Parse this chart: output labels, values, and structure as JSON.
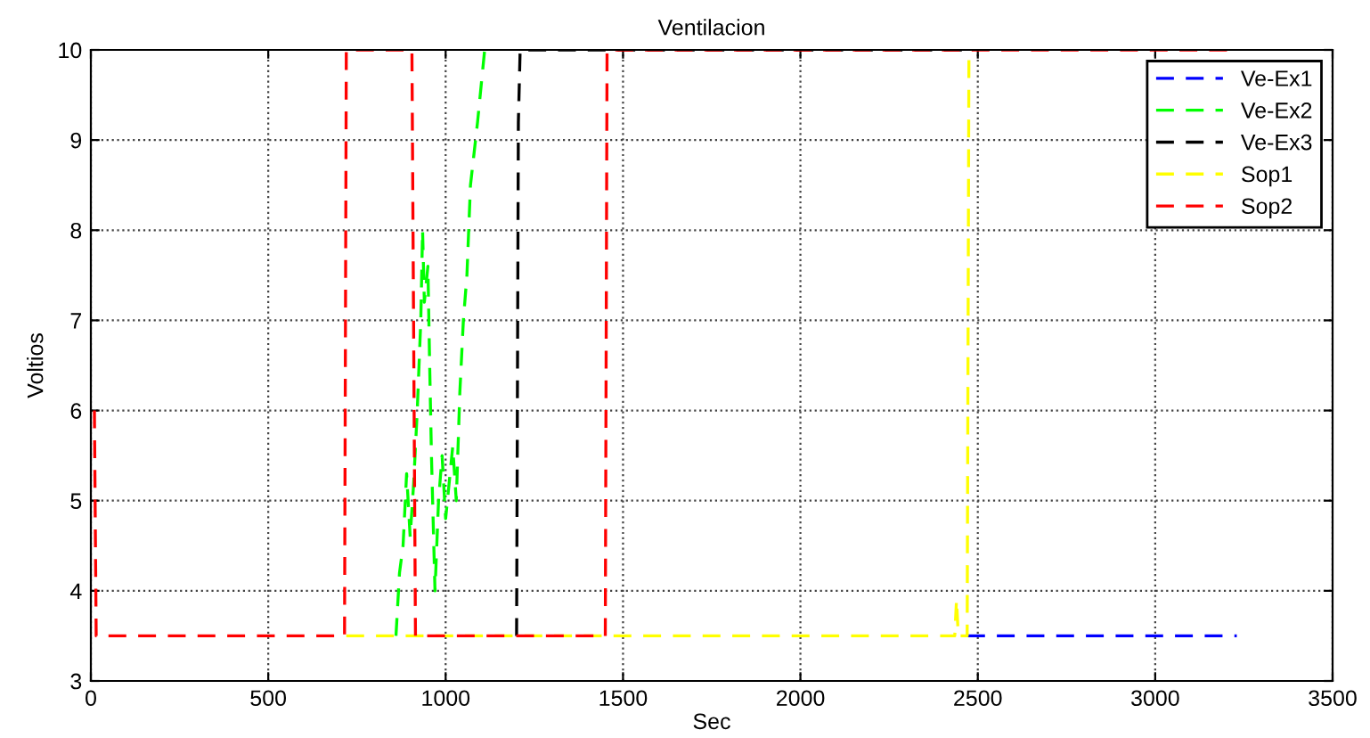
{
  "chart_data": {
    "type": "line",
    "title": "Ventilacion",
    "xlabel": "Sec",
    "ylabel": "Voltios",
    "xlim": [
      0,
      3500
    ],
    "ylim": [
      3,
      10
    ],
    "xticks": [
      0,
      500,
      1000,
      1500,
      2000,
      2500,
      3000,
      3500
    ],
    "yticks": [
      3,
      4,
      5,
      6,
      7,
      8,
      9,
      10
    ],
    "grid": true,
    "legend": "top right",
    "line_style": "dashed",
    "marker": "none",
    "series": [
      {
        "name": "Ve-Ex1",
        "color": "#0000ff",
        "x": [
          2470,
          3230
        ],
        "values": [
          3.5,
          3.5
        ]
      },
      {
        "name": "Ve-Ex2",
        "color": "#00ff00",
        "x": [
          860,
          870,
          880,
          890,
          900,
          910,
          920,
          930,
          935,
          940,
          950,
          955,
          960,
          970,
          980,
          990,
          1000,
          1010,
          1020,
          1030,
          1040,
          1050,
          1060,
          1070,
          1090,
          1110,
          1120
        ],
        "values": [
          3.5,
          4.2,
          4.5,
          5.3,
          4.6,
          5.2,
          6.0,
          7.0,
          8.0,
          7.2,
          7.6,
          6.5,
          5.5,
          4.0,
          5.0,
          5.5,
          4.8,
          5.2,
          5.6,
          5.0,
          6.2,
          7.0,
          7.5,
          8.5,
          9.2,
          10,
          10
        ]
      },
      {
        "name": "Ve-Ex3",
        "color": "#000000",
        "x": [
          1200,
          1205,
          1210,
          2470
        ],
        "values": [
          3.5,
          9.2,
          10,
          10
        ]
      },
      {
        "name": "Sop1",
        "color": "#ffff00",
        "x": [
          720,
          2435,
          2440,
          2445,
          2470,
          2475,
          2480
        ],
        "values": [
          3.5,
          3.5,
          3.9,
          3.5,
          3.5,
          10,
          10
        ]
      },
      {
        "name": "Sop2",
        "color": "#ff0000",
        "x": [
          10,
          15,
          715,
          720,
          905,
          915,
          930,
          1450,
          1455,
          3230
        ],
        "values": [
          6,
          3.5,
          3.5,
          10,
          10,
          3.5,
          3.5,
          3.5,
          10,
          10
        ]
      }
    ]
  }
}
